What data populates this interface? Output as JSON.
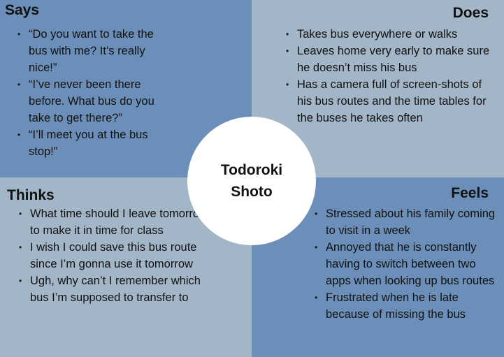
{
  "center": {
    "name": "Todoroki Shoto"
  },
  "says": {
    "title": "Says",
    "items": [
      "“Do you want to take the bus with me? It’s really nice!”",
      "“I’ve never been there before. What bus do you take to get there?”",
      "“I’ll meet you at the bus stop!”"
    ]
  },
  "does": {
    "title": "Does",
    "items": [
      "Takes bus everywhere or walks",
      "Leaves home very early to make sure he doesn’t miss his bus",
      "Has a camera full of screen-shots of his bus routes and the time tables for the buses he takes often"
    ]
  },
  "thinks": {
    "title": "Thinks",
    "items": [
      "What time should I leave tomorrow to make it in time for class",
      "I wish I could save this bus route since I’m gonna use it tomorrow",
      "Ugh, why can’t I remember which bus I’m supposed to transfer to"
    ]
  },
  "feels": {
    "title": "Feels",
    "items": [
      "Stressed about his family coming to visit in a week",
      "Annoyed that he is constantly having to switch between two apps when looking up bus routes",
      "Frustrated when he is late because of missing the bus"
    ]
  },
  "colors": {
    "dark_quadrant": "#6b8fb8",
    "light_quadrant": "#a2b6c8",
    "center_circle": "#ffffff",
    "text": "#111111"
  }
}
